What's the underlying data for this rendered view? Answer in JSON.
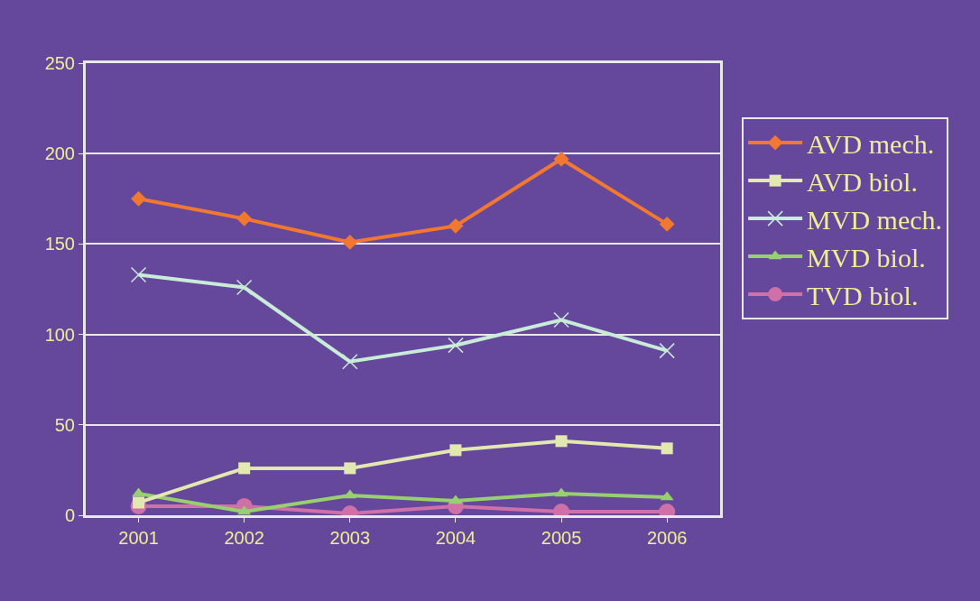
{
  "chart_data": {
    "type": "line",
    "categories": [
      "2001",
      "2002",
      "2003",
      "2004",
      "2005",
      "2006"
    ],
    "series": [
      {
        "name": "AVD mech.",
        "color": "#f07830",
        "marker": "diamond",
        "values": [
          175,
          164,
          151,
          160,
          197,
          161
        ]
      },
      {
        "name": "AVD biol.",
        "color": "#e2e8b0",
        "marker": "square",
        "values": [
          7,
          26,
          26,
          36,
          41,
          37
        ]
      },
      {
        "name": "MVD mech.",
        "color": "#c8ecd8",
        "marker": "cross",
        "values": [
          133,
          126,
          85,
          94,
          108,
          91
        ]
      },
      {
        "name": "MVD biol.",
        "color": "#98d070",
        "marker": "triangle",
        "values": [
          12,
          2,
          11,
          8,
          12,
          10
        ]
      },
      {
        "name": "TVD biol.",
        "color": "#d070a8",
        "marker": "circle",
        "values": [
          5,
          5,
          1,
          5,
          2,
          2
        ]
      }
    ],
    "ylim": [
      0,
      250
    ],
    "yticks": [
      0,
      50,
      100,
      150,
      200,
      250
    ],
    "grid": "y",
    "legend": "right",
    "line_style": "solid"
  }
}
